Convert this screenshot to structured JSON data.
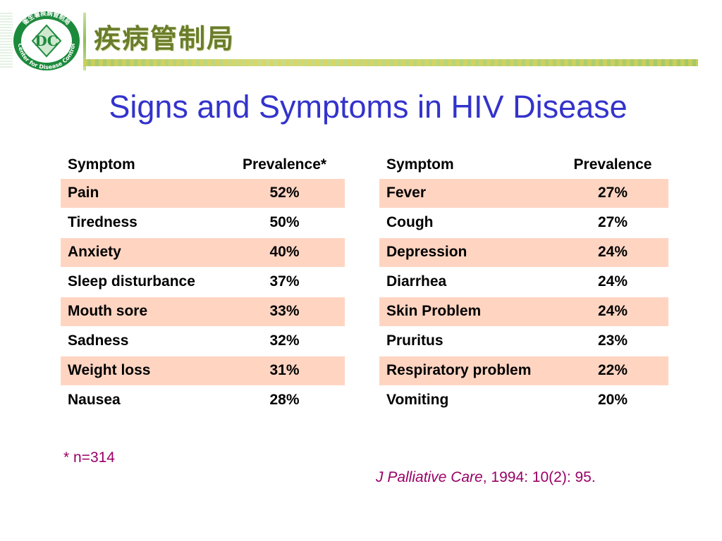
{
  "header": {
    "logo_ring_text": "Center for Disease Control",
    "logo_top_text": "衛生署疾病管制局",
    "logo_monogram": "DC",
    "agency_name": "疾病管制局",
    "colors": {
      "logo_green": "#1c8a3c",
      "band_green": "#a6c96a"
    }
  },
  "title": "Signs and Symptoms in HIV Disease",
  "tables": {
    "left": {
      "headers": [
        "Symptom",
        "Prevalence*"
      ],
      "rows": [
        {
          "symptom": "Pain",
          "prevalence": "52%"
        },
        {
          "symptom": "Tiredness",
          "prevalence": "50%"
        },
        {
          "symptom": "Anxiety",
          "prevalence": "40%"
        },
        {
          "symptom": "Sleep disturbance",
          "prevalence": "37%"
        },
        {
          "symptom": "Mouth sore",
          "prevalence": "33%"
        },
        {
          "symptom": "Sadness",
          "prevalence": "32%"
        },
        {
          "symptom": "Weight loss",
          "prevalence": "31%"
        },
        {
          "symptom": "Nausea",
          "prevalence": "28%"
        }
      ]
    },
    "right": {
      "headers": [
        "Symptom",
        "Prevalence"
      ],
      "rows": [
        {
          "symptom": "Fever",
          "prevalence": "27%"
        },
        {
          "symptom": "Cough",
          "prevalence": "27%"
        },
        {
          "symptom": "Depression",
          "prevalence": "24%"
        },
        {
          "symptom": "Diarrhea",
          "prevalence": "24%"
        },
        {
          "symptom": "Skin Problem",
          "prevalence": "24%"
        },
        {
          "symptom": "Pruritus",
          "prevalence": "23%"
        },
        {
          "symptom": "Respiratory problem",
          "prevalence": "22%"
        },
        {
          "symptom": "Vomiting",
          "prevalence": "20%"
        }
      ]
    }
  },
  "footnote": "* n=314",
  "citation": {
    "journal": "J Palliative Care",
    "details": ", 1994: 10(2): 95."
  },
  "colors": {
    "title": "#3333cc",
    "row_shade": "#ffd5c2",
    "footnote": "#990066"
  }
}
